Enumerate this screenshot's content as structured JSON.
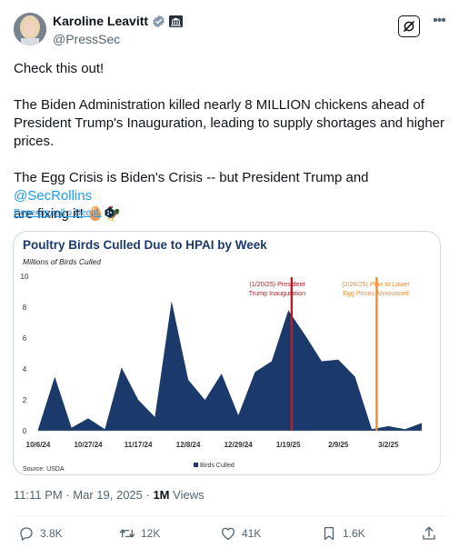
{
  "author": {
    "name": "Karoline Leavitt",
    "handle": "@PressSec",
    "verified_icon": "verified-badge-icon",
    "affiliation_icon": "government-building-icon"
  },
  "tweet": {
    "line1": "Check this out!",
    "line2a": "The Biden Administration killed nearly 8 MILLION chickens ahead of",
    "line2b": "President Trump's Inauguration, leading to supply shortages and higher",
    "line2c": "prices.",
    "line3a": "The Egg Crisis is Biden's Crisis -- but President Trump and ",
    "mention": "@SecRollins",
    "line3b": "are fixing it! ",
    "emojis": "🥚🐓",
    "translate_link": "Перекладай з DeepL"
  },
  "meta": {
    "time": "11:11 PM",
    "date": "Mar 19, 2025",
    "views_count": "1M",
    "views_label": "Views"
  },
  "actions": {
    "replies": "3.8K",
    "reposts": "12K",
    "likes": "41K",
    "bookmarks": "1.6K"
  },
  "colors": {
    "accent": "#1d9bf0",
    "area": "#1b3a6b",
    "title": "#1b3a6b",
    "inauguration_line": "#c0191f",
    "plan_line": "#f08a2a"
  },
  "chart_data": {
    "type": "area",
    "title": "Poultry Birds Culled Due to HPAI by Week",
    "subtitle": "Millions of Birds Culled",
    "ylim": [
      0,
      10
    ],
    "yticks": [
      "0",
      "2",
      "4",
      "6",
      "8",
      "10"
    ],
    "xticks": [
      "10/6/24",
      "10/27/24",
      "11/17/24",
      "12/8/24",
      "12/29/24",
      "1/19/25",
      "2/9/25",
      "3/2/25"
    ],
    "x_range_weeks": [
      0,
      23
    ],
    "series": [
      {
        "name": "Birds Culled",
        "x": [
          0,
          1,
          2,
          3,
          4,
          5,
          6,
          7,
          8,
          9,
          10,
          11,
          12,
          13,
          14,
          15,
          16,
          17,
          18,
          19,
          20,
          21,
          22,
          23
        ],
        "values": [
          0.1,
          3.5,
          0.2,
          0.8,
          0.1,
          4.1,
          2.0,
          0.9,
          8.4,
          3.3,
          2.0,
          3.7,
          1.0,
          3.8,
          4.5,
          7.8,
          6.2,
          4.5,
          4.6,
          3.5,
          0.1,
          0.3,
          0.1,
          0.5
        ]
      }
    ],
    "annotations": [
      {
        "week": 15.2,
        "text1": "(1/20/25)  President",
        "text2": "Trump Inauguration",
        "color": "#c0191f"
      },
      {
        "week": 20.3,
        "text1": "(2/26/25)  Plan to Lower",
        "text2": "Egg Prices Announced",
        "color": "#f08a2a"
      }
    ],
    "source": "Source: USDA",
    "legend": "Birds Culled",
    "legend_position": "bottom-center",
    "grid": false
  }
}
